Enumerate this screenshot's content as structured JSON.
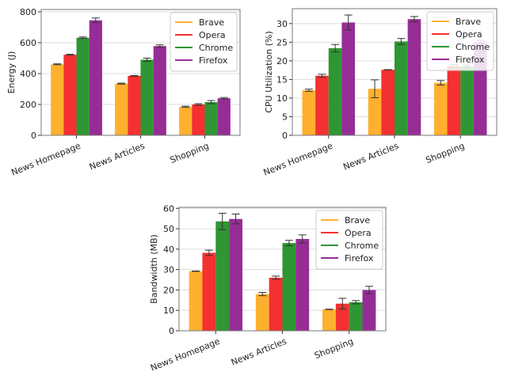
{
  "chart_data": [
    {
      "type": "bar",
      "ylabel": "Energy (J)",
      "categories": [
        "News Homepage",
        "News Articles",
        "Shopping"
      ],
      "ylim": [
        0,
        815
      ],
      "yticks": [
        0,
        200,
        400,
        600,
        800
      ],
      "grid": true,
      "legend": "top-right",
      "series": [
        {
          "name": "Brave",
          "color": "#FFB02E",
          "values": [
            460,
            335,
            185
          ],
          "errors": [
            3,
            3,
            4
          ]
        },
        {
          "name": "Opera",
          "color": "#F53030",
          "values": [
            522,
            385,
            200
          ],
          "errors": [
            3,
            2,
            5
          ]
        },
        {
          "name": "Chrome",
          "color": "#2E9632",
          "values": [
            632,
            490,
            215
          ],
          "errors": [
            5,
            10,
            10
          ]
        },
        {
          "name": "Firefox",
          "color": "#962D96",
          "values": [
            745,
            578,
            240
          ],
          "errors": [
            15,
            8,
            5
          ]
        }
      ]
    },
    {
      "type": "bar",
      "ylabel": "CPU Utilization (%)",
      "categories": [
        "News Homepage",
        "News Articles",
        "Shopping"
      ],
      "ylim": [
        0,
        34
      ],
      "yticks": [
        0,
        5,
        10,
        15,
        20,
        25,
        30
      ],
      "grid": true,
      "legend": "top-right",
      "series": [
        {
          "name": "Brave",
          "color": "#FFB02E",
          "values": [
            12.1,
            12.5,
            14.1
          ],
          "errors": [
            0.3,
            2.4,
            0.6
          ]
        },
        {
          "name": "Opera",
          "color": "#F53030",
          "values": [
            16.0,
            17.6,
            18.6
          ],
          "errors": [
            0.4,
            0.05,
            0.4
          ]
        },
        {
          "name": "Chrome",
          "color": "#2E9632",
          "values": [
            23.4,
            25.2,
            18.5
          ],
          "errors": [
            1.0,
            0.8,
            0.3
          ]
        },
        {
          "name": "Firefox",
          "color": "#962D96",
          "values": [
            30.3,
            31.2,
            25.0
          ],
          "errors": [
            2.0,
            0.7,
            0.5
          ]
        }
      ]
    },
    {
      "type": "bar",
      "ylabel": "Bandwidth (MB)",
      "categories": [
        "News Homepage",
        "News Articles",
        "Shopping"
      ],
      "ylim": [
        0,
        60.5
      ],
      "yticks": [
        0,
        10,
        20,
        30,
        40,
        50,
        60
      ],
      "grid": true,
      "legend": "top-right",
      "series": [
        {
          "name": "Brave",
          "color": "#FFB02E",
          "values": [
            29.2,
            18.0,
            10.5
          ],
          "errors": [
            0.1,
            0.8,
            0.1
          ]
        },
        {
          "name": "Opera",
          "color": "#F53030",
          "values": [
            38.2,
            26.0,
            13.3
          ],
          "errors": [
            1.3,
            0.8,
            2.6
          ]
        },
        {
          "name": "Chrome",
          "color": "#2E9632",
          "values": [
            53.6,
            43.0,
            14.0
          ],
          "errors": [
            4.0,
            1.3,
            0.8
          ]
        },
        {
          "name": "Firefox",
          "color": "#962D96",
          "values": [
            54.8,
            45.0,
            20.0
          ],
          "errors": [
            2.4,
            2.0,
            1.8
          ]
        }
      ]
    }
  ]
}
